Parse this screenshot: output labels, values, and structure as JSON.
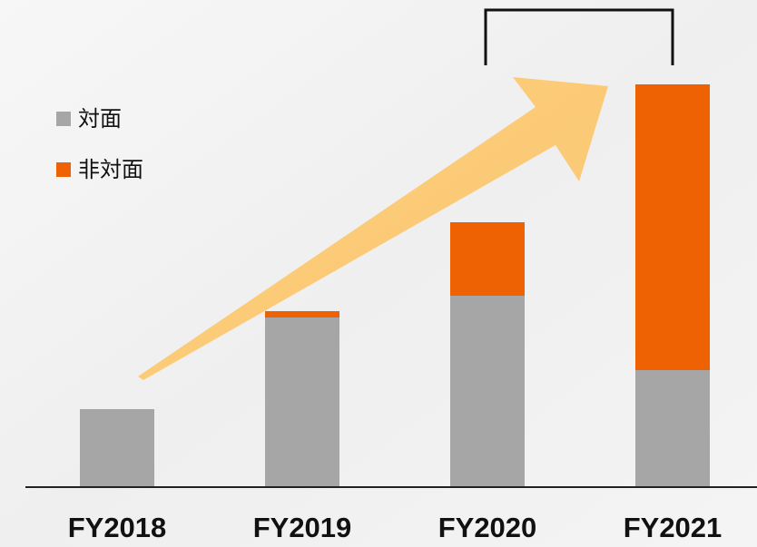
{
  "chart_data": {
    "type": "stacked_bar",
    "categories": [
      "FY2018",
      "FY2019",
      "FY2020",
      "FY2021"
    ],
    "series": [
      {
        "name": "対面",
        "color": "#a6a6a6",
        "values": [
          86,
          187,
          211,
          129
        ]
      },
      {
        "name": "非対面",
        "color": "#ee6204",
        "values": [
          0,
          7,
          81,
          315
        ]
      }
    ],
    "ylim": [
      0,
      444
    ]
  }
}
